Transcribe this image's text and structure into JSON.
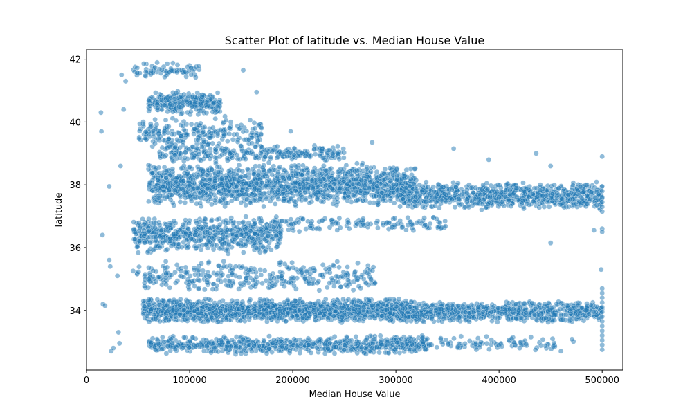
{
  "chart_data": {
    "type": "scatter",
    "title": "Scatter Plot of latitude vs. Median House Value",
    "xlabel": "Median House Value",
    "ylabel": "latitude",
    "xlim": [
      0,
      520000
    ],
    "ylim": [
      32.1,
      42.3
    ],
    "x_ticks": [
      0,
      100000,
      200000,
      300000,
      400000,
      500000
    ],
    "x_tick_labels": [
      "0",
      "100000",
      "200000",
      "300000",
      "400000",
      "500000"
    ],
    "y_ticks": [
      34,
      36,
      38,
      40,
      42
    ],
    "y_tick_labels": [
      "34",
      "36",
      "38",
      "40",
      "42"
    ],
    "grid": false,
    "point_color": "#1f77b4",
    "point_alpha": 0.5,
    "series": [
      {
        "clusters": [
          {
            "x": [
              60000,
              130000
            ],
            "y": [
              40.2,
              41.0
            ],
            "count": 260
          },
          {
            "x": [
              45000,
              110000
            ],
            "y": [
              41.4,
              41.9
            ],
            "count": 70
          },
          {
            "x": [
              50000,
              170000
            ],
            "y": [
              39.0,
              40.2
            ],
            "count": 230
          },
          {
            "x": [
              70000,
              250000
            ],
            "y": [
              38.7,
              39.3
            ],
            "count": 250
          },
          {
            "x": [
              60000,
              320000
            ],
            "y": [
              37.3,
              38.7
            ],
            "count": 1500
          },
          {
            "x": [
              300000,
              500000
            ],
            "y": [
              37.2,
              38.1
            ],
            "count": 750
          },
          {
            "x": [
              45000,
              190000
            ],
            "y": [
              35.8,
              37.0
            ],
            "count": 620
          },
          {
            "x": [
              180000,
              350000
            ],
            "y": [
              36.5,
              37.0
            ],
            "count": 130
          },
          {
            "x": [
              45000,
              280000
            ],
            "y": [
              34.6,
              35.6
            ],
            "count": 330
          },
          {
            "x": [
              55000,
              320000
            ],
            "y": [
              33.6,
              34.4
            ],
            "count": 1500
          },
          {
            "x": [
              300000,
              500000
            ],
            "y": [
              33.6,
              34.3
            ],
            "count": 700
          },
          {
            "x": [
              60000,
              330000
            ],
            "y": [
              32.6,
              33.2
            ],
            "count": 650
          },
          {
            "x": [
              300000,
              480000
            ],
            "y": [
              32.7,
              33.2
            ],
            "count": 110
          }
        ],
        "points": [
          [
            14000,
            40.3
          ],
          [
            14500,
            39.7
          ],
          [
            15500,
            36.4
          ],
          [
            16000,
            34.2
          ],
          [
            18000,
            34.15
          ],
          [
            22000,
            37.95
          ],
          [
            24000,
            32.7
          ],
          [
            23000,
            35.4
          ],
          [
            26000,
            32.8
          ],
          [
            31000,
            33.3
          ],
          [
            33000,
            38.6
          ],
          [
            34000,
            41.5
          ],
          [
            38000,
            41.3
          ],
          [
            36000,
            40.4
          ],
          [
            32000,
            32.95
          ],
          [
            22000,
            35.6
          ],
          [
            30000,
            35.1
          ],
          [
            165000,
            40.95
          ],
          [
            152000,
            41.65
          ],
          [
            198000,
            39.7
          ],
          [
            277000,
            39.35
          ],
          [
            436000,
            39.0
          ],
          [
            450000,
            38.6
          ],
          [
            500000,
            38.9
          ],
          [
            356000,
            39.15
          ],
          [
            390000,
            38.8
          ],
          [
            440000,
            38.0
          ],
          [
            450000,
            36.15
          ],
          [
            492000,
            36.55
          ],
          [
            499000,
            35.3
          ],
          [
            500000,
            34.7
          ],
          [
            500000,
            34.55
          ],
          [
            500000,
            34.4
          ],
          [
            500000,
            34.25
          ],
          [
            500000,
            34.1
          ],
          [
            500000,
            33.95
          ],
          [
            500000,
            33.8
          ],
          [
            500000,
            33.65
          ],
          [
            500000,
            33.5
          ],
          [
            500000,
            33.35
          ],
          [
            500000,
            33.2
          ],
          [
            500000,
            33.05
          ],
          [
            500000,
            32.9
          ],
          [
            500000,
            32.75
          ],
          [
            500000,
            37.95
          ],
          [
            500000,
            37.8
          ],
          [
            500000,
            37.6
          ],
          [
            500000,
            37.45
          ],
          [
            500000,
            37.3
          ],
          [
            500000,
            37.15
          ],
          [
            500000,
            36.6
          ],
          [
            500000,
            36.5
          ],
          [
            378000,
            32.75
          ],
          [
            420000,
            32.8
          ],
          [
            460000,
            32.7
          ]
        ]
      }
    ]
  }
}
